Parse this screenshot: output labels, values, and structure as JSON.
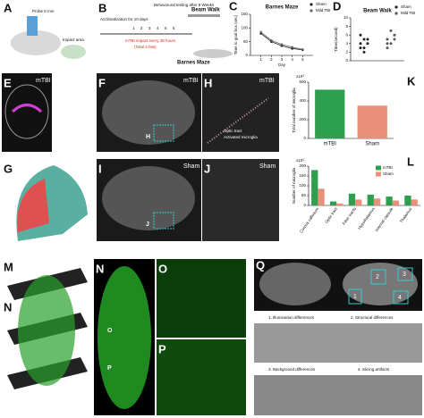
{
  "figure": {
    "a": {
      "label": "A",
      "probe": "Probe 5 mm",
      "impact": "Impact area"
    },
    "b": {
      "label": "B",
      "acclimatization": "Acclimatization for 10 days",
      "days": [
        "1",
        "2",
        "3",
        "4",
        "5",
        "6"
      ],
      "testing": "Behavioural testing after 8 Weeks",
      "beam_walk": "Beam Walk",
      "impact": "mTBI impact every 48 hours",
      "total": "(Total 4 hits)",
      "barnes": "Barnes Maze"
    },
    "e": {
      "label": "E",
      "tag": "mTBI"
    },
    "f": {
      "label": "F",
      "tag": "mTBI",
      "box": "H"
    },
    "h": {
      "label": "H",
      "tag": "mTBI",
      "optic": "Optic tract",
      "microglia": "Activated microglia"
    },
    "g": {
      "label": "G"
    },
    "i": {
      "label": "I",
      "tag": "Sham",
      "box": "J"
    },
    "j": {
      "label": "J",
      "tag": "Sham"
    },
    "m": {
      "label": "M",
      "sub": "N"
    },
    "n": {
      "label": "N",
      "o": "O",
      "p": "P"
    },
    "o": {
      "label": "O"
    },
    "p": {
      "label": "P"
    },
    "q": {
      "label": "Q",
      "boxes": [
        "1",
        "2",
        "3",
        "4"
      ],
      "captions": [
        "1. Illumination differences",
        "2. Structural differences",
        "3. Background differences",
        "4. Slicing artifacts"
      ]
    }
  },
  "chart_data": [
    {
      "type": "line",
      "panel": "C",
      "title": "Barnes Maze",
      "x_label": "Day",
      "y_label": "Time to goal box (sec)",
      "x": [
        1,
        2,
        3,
        4,
        5
      ],
      "xlim": [
        0,
        6
      ],
      "xticks": [
        1,
        2,
        3,
        4,
        5
      ],
      "ylim": [
        0,
        150
      ],
      "yticks": [
        0,
        50,
        100,
        150
      ],
      "series": [
        {
          "name": "Sham",
          "color": "#222222",
          "values": [
            80,
            50,
            35,
            25,
            20
          ]
        },
        {
          "name": "Mild TBI",
          "color": "#666666",
          "values": [
            85,
            55,
            40,
            30,
            22
          ]
        }
      ]
    },
    {
      "type": "strip",
      "panel": "D",
      "title": "Beam Walk",
      "y_label": "Time(second)",
      "ylim": [
        0,
        10
      ],
      "yticks": [
        0,
        2,
        4,
        6,
        8,
        10
      ],
      "series": [
        {
          "name": "Sham",
          "color": "#222222",
          "values": [
            4,
            3,
            5,
            6,
            2,
            4,
            3,
            5
          ]
        },
        {
          "name": "Mild TBI",
          "color": "#555555",
          "values": [
            5,
            4,
            6,
            3,
            7,
            5,
            4
          ]
        }
      ]
    },
    {
      "type": "bar",
      "panel": "K",
      "y_label": "Total number of microglia",
      "y_exponent": "x10³",
      "categories": [
        "mTBI",
        "Sham"
      ],
      "values": [
        520,
        350
      ],
      "colors": [
        "#2e9e4f",
        "#e8907a"
      ],
      "ylim": [
        0,
        600
      ],
      "yticks": [
        0,
        200,
        400,
        600
      ]
    },
    {
      "type": "grouped_bar",
      "panel": "L",
      "y_label": "Number of microglia",
      "y_exponent": "x10³",
      "categories": [
        "Corpus callosum",
        "Optic tract",
        "Fiber tracts",
        "Hypothalamus",
        "Internal capsule",
        "Thalamus"
      ],
      "ylim": [
        0,
        200
      ],
      "yticks": [
        0,
        50,
        100,
        150,
        200
      ],
      "series": [
        {
          "name": "mTBI",
          "color": "#2e9e4f",
          "values": [
            180,
            20,
            60,
            55,
            45,
            50
          ]
        },
        {
          "name": "Sham",
          "color": "#e8907a",
          "values": [
            85,
            10,
            30,
            35,
            25,
            30
          ]
        }
      ]
    }
  ]
}
